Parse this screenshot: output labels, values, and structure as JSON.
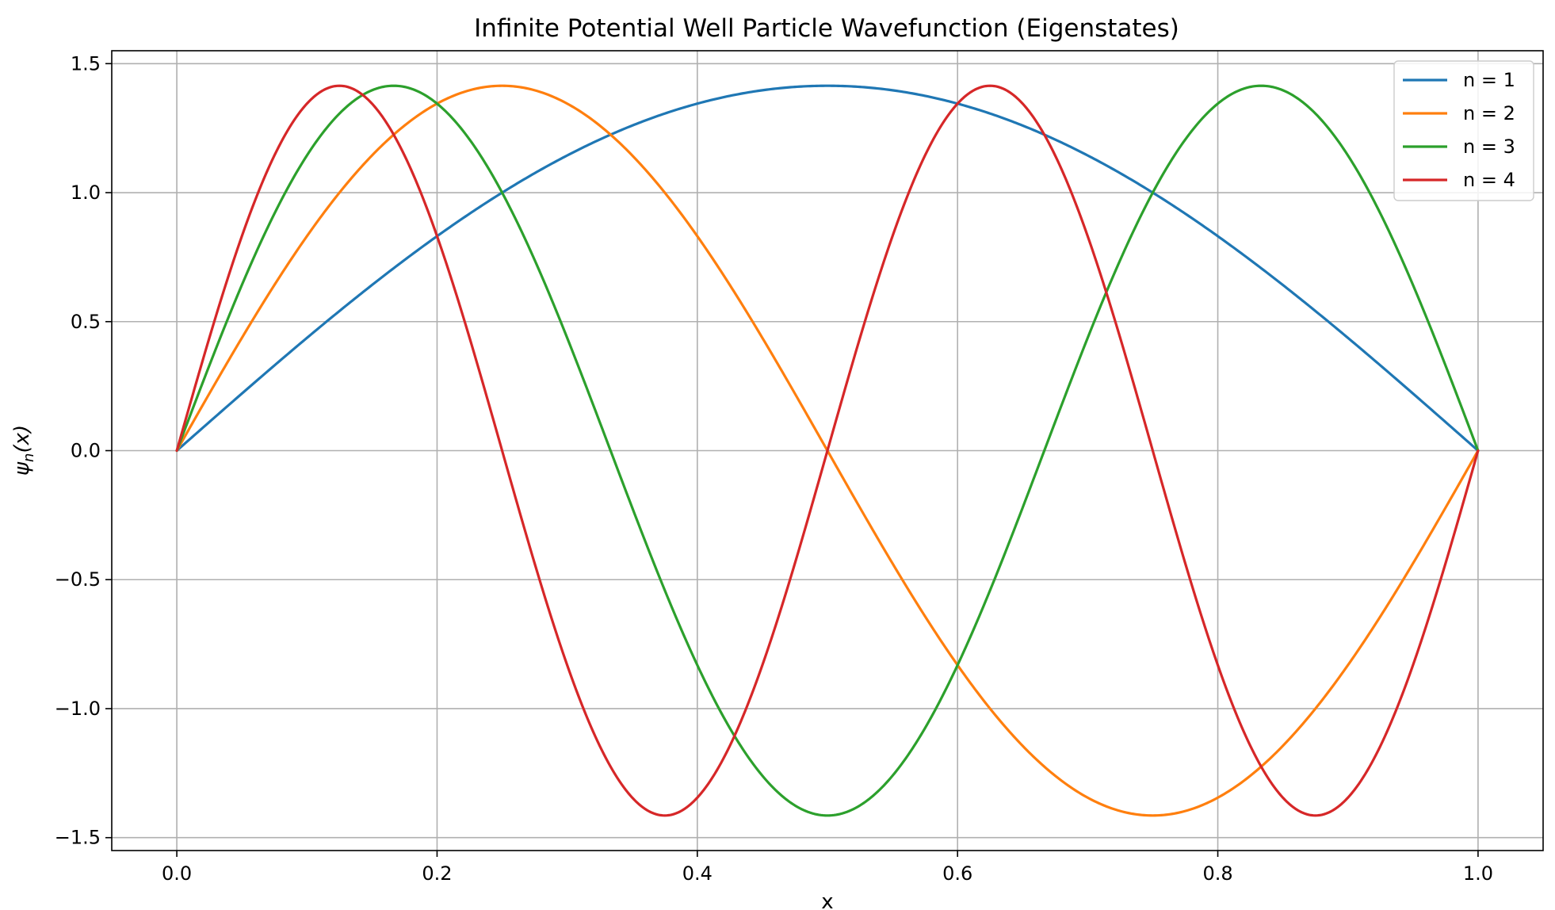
{
  "chart_data": {
    "type": "line",
    "title": "Infinite Potential Well Particle Wavefunction (Eigenstates)",
    "xlabel": "x",
    "ylabel": "ψn(x)",
    "ylabel_main": "ψ",
    "ylabel_sub": "n",
    "ylabel_arg": "(x)",
    "xlim": [
      -0.05,
      1.05
    ],
    "ylim": [
      -1.55,
      1.55
    ],
    "xticks": [
      0.0,
      0.2,
      0.4,
      0.6,
      0.8,
      1.0
    ],
    "xtick_labels": [
      "0.0",
      "0.2",
      "0.4",
      "0.6",
      "0.8",
      "1.0"
    ],
    "yticks": [
      1.5,
      1.0,
      0.5,
      0.0,
      -0.5,
      -1.0,
      -1.5
    ],
    "ytick_labels": [
      "1.5",
      "1.0",
      "0.5",
      "0.0",
      "−0.5",
      "−1.0",
      "−1.5"
    ],
    "grid": true,
    "legend_position": "top-right",
    "x": [
      0.0,
      0.0625,
      0.125,
      0.1875,
      0.25,
      0.3125,
      0.375,
      0.4375,
      0.5,
      0.5625,
      0.625,
      0.6875,
      0.75,
      0.8125,
      0.875,
      0.9375,
      1.0
    ],
    "series": [
      {
        "name": "n = 1",
        "color": "#1f77b4",
        "formula": "sqrt(2)*sin(1*pi*x)",
        "values": [
          0.0,
          0.276,
          0.541,
          0.786,
          1.0,
          1.176,
          1.307,
          1.387,
          1.414,
          1.387,
          1.307,
          1.176,
          1.0,
          0.786,
          0.541,
          0.276,
          0.0
        ]
      },
      {
        "name": "n = 2",
        "color": "#ff7f0e",
        "formula": "sqrt(2)*sin(2*pi*x)",
        "values": [
          0.0,
          0.541,
          1.0,
          1.307,
          1.414,
          1.307,
          1.0,
          0.541,
          0.0,
          -0.541,
          -1.0,
          -1.307,
          -1.414,
          -1.307,
          -1.0,
          -0.541,
          0.0
        ]
      },
      {
        "name": "n = 3",
        "color": "#2ca02c",
        "formula": "sqrt(2)*sin(3*pi*x)",
        "values": [
          0.0,
          0.786,
          1.307,
          1.387,
          1.0,
          0.276,
          -0.541,
          -1.176,
          -1.414,
          -1.176,
          -0.541,
          0.276,
          1.0,
          1.387,
          1.307,
          0.786,
          0.0
        ]
      },
      {
        "name": "n = 4",
        "color": "#d62728",
        "formula": "sqrt(2)*sin(4*pi*x)",
        "values": [
          0.0,
          1.0,
          1.414,
          1.0,
          0.0,
          -1.0,
          -1.414,
          -1.0,
          0.0,
          1.0,
          1.414,
          1.0,
          0.0,
          -1.0,
          -1.414,
          -1.0,
          0.0
        ]
      }
    ]
  }
}
